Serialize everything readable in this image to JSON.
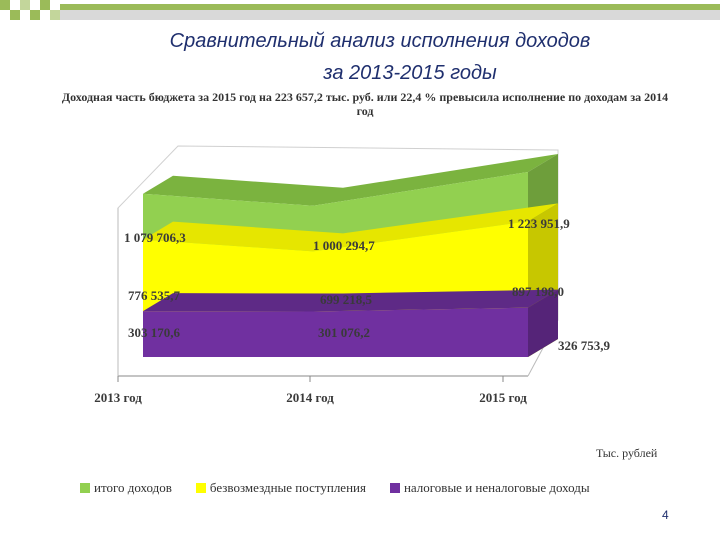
{
  "header": {
    "title_line1": "Сравнительный анализ исполнения доходов",
    "title_line2": "за 2013-2015 годы",
    "subtitle": "Доходная часть бюджета за 2015 год на 223 657,2 тыс. руб. или 22,4 % превысила исполнение по доходам за 2014 год"
  },
  "chart_data": {
    "type": "area",
    "categories": [
      "2013 год",
      "2014 год",
      "2015 год"
    ],
    "series": [
      {
        "name": "итого доходов",
        "color": "#92d050",
        "values": [
          1079706.3,
          1000294.7,
          1223951.9
        ],
        "labels": [
          "1 079 706,3",
          "1 000 294,7",
          "1 223 951,9"
        ]
      },
      {
        "name": "безвозмездные поступления",
        "color": "#ffff00",
        "values": [
          776535.7,
          699218.5,
          897198.0
        ],
        "labels": [
          "776 535,7",
          "699 218,5",
          "897 198,0"
        ]
      },
      {
        "name": "налоговые и неналоговые доходы",
        "color": "#7030a0",
        "values": [
          303170.6,
          301076.2,
          326753.9
        ],
        "labels": [
          "303 170,6",
          "301 076,2",
          "326 753,9"
        ]
      }
    ],
    "unit_label": "Тыс. рублей",
    "legend_position": "bottom",
    "three_d": true
  },
  "page_number": "4"
}
